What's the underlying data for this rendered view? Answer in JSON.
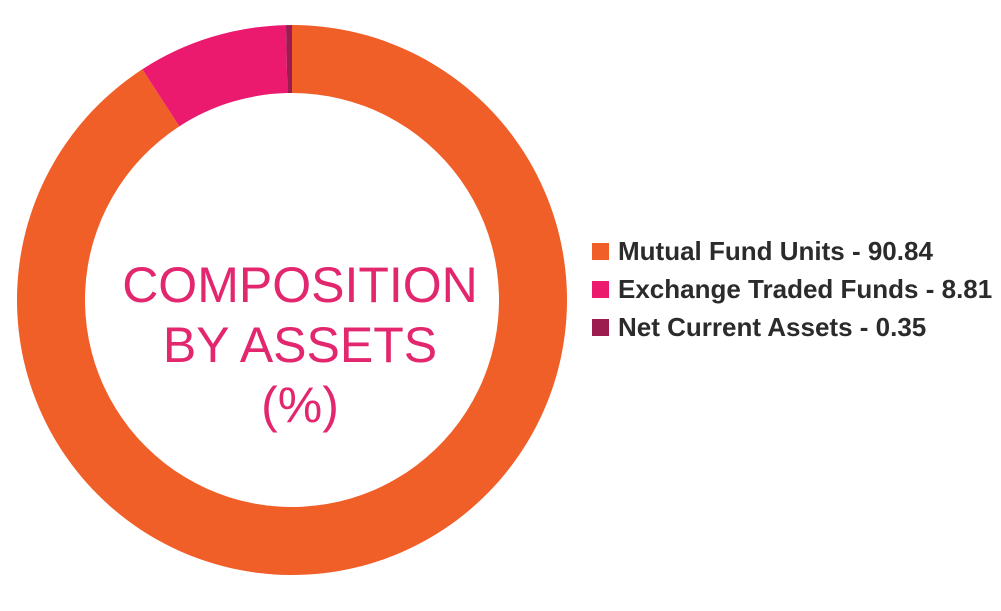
{
  "chart_data": {
    "type": "pie",
    "style": "donut",
    "title_lines": [
      "COMPOSITION",
      "BY ASSETS",
      "(%)"
    ],
    "categories": [
      "Mutual Fund Units",
      "Exchange Traded Funds",
      "Net Current Assets"
    ],
    "values": [
      90.84,
      8.81,
      0.35
    ],
    "colors": [
      "#f15f29",
      "#ec1a6f",
      "#9d1c50"
    ],
    "legend": {
      "position": "right",
      "items": [
        {
          "label": "Mutual Fund Units - 90.84",
          "color": "#f15f29"
        },
        {
          "label": "Exchange Traded Funds - 8.81",
          "color": "#ec1a6f"
        },
        {
          "label": "Net Current Assets - 0.35",
          "color": "#9d1c50"
        }
      ]
    },
    "title_color": "#e3276f"
  }
}
